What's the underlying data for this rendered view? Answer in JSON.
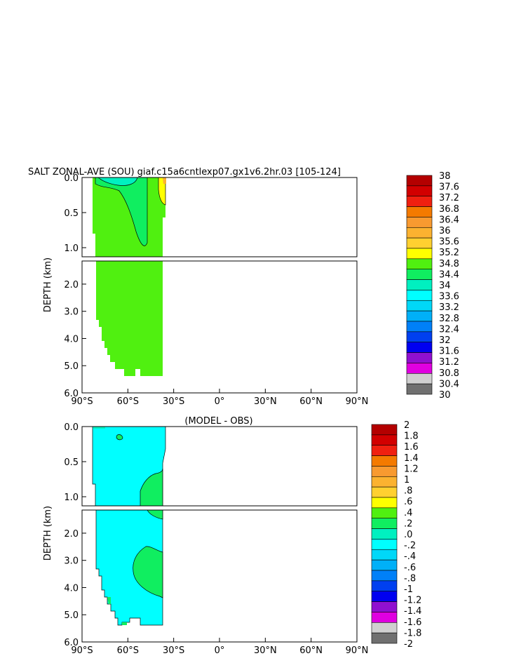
{
  "chart_data": [
    {
      "type": "heatmap",
      "title": "SALT ZONAL-AVE (SOU) giaf.c15a6cntlexp07.gx1v6.2hr.03 [105-124]",
      "ylabel": "DEPTH (km)",
      "xlim": [
        -90,
        90
      ],
      "ylim": [
        6.0,
        0.0
      ],
      "x_ticks": [
        -90,
        -60,
        -30,
        0,
        30,
        60,
        90
      ],
      "x_tick_labels": [
        "90°S",
        "60°S",
        "30°S",
        "0°",
        "30°N",
        "60°N",
        "90°N"
      ],
      "upper_y_ticks": [
        0.0,
        0.5,
        1.0
      ],
      "upper_y_tick_labels": [
        "0.0",
        "0.5",
        "1.0"
      ],
      "lower_y_ticks": [
        2.0,
        3.0,
        4.0,
        5.0,
        6.0
      ],
      "lower_y_tick_labels": [
        "2.0",
        "3.0",
        "4.0",
        "5.0",
        "6.0"
      ],
      "colorbar_labels": [
        "38",
        "37.6",
        "37.2",
        "36.8",
        "36.4",
        "36",
        "35.6",
        "35.2",
        "34.8",
        "34.4",
        "34",
        "33.6",
        "33.2",
        "32.8",
        "32.4",
        "32",
        "31.6",
        "31.2",
        "30.8",
        "30.4",
        "30"
      ],
      "colorbar_colors": [
        "#b40000",
        "#d20000",
        "#f02010",
        "#f47a00",
        "#f89a30",
        "#fbb230",
        "#ffd030",
        "#ffff00",
        "#50f010",
        "#10ee60",
        "#00f0c0",
        "#00ffff",
        "#00d8f8",
        "#00b0f8",
        "#0080f8",
        "#0040f0",
        "#0000f0",
        "#9010d0",
        "#e000e0",
        "#d0d0d0",
        "#707070"
      ]
    },
    {
      "type": "heatmap",
      "title": "(MODEL - OBS)",
      "ylabel": "DEPTH (km)",
      "xlim": [
        -90,
        90
      ],
      "ylim": [
        6.0,
        0.0
      ],
      "x_ticks": [
        -90,
        -60,
        -30,
        0,
        30,
        60,
        90
      ],
      "x_tick_labels": [
        "90°S",
        "60°S",
        "30°S",
        "0°",
        "30°N",
        "60°N",
        "90°N"
      ],
      "upper_y_ticks": [
        0.0,
        0.5,
        1.0
      ],
      "upper_y_tick_labels": [
        "0.0",
        "0.5",
        "1.0"
      ],
      "lower_y_ticks": [
        2.0,
        3.0,
        4.0,
        5.0,
        6.0
      ],
      "lower_y_tick_labels": [
        "2.0",
        "3.0",
        "4.0",
        "5.0",
        "6.0"
      ],
      "colorbar_labels": [
        "2",
        "1.8",
        "1.6",
        "1.4",
        "1.2",
        "1",
        ".8",
        ".6",
        ".4",
        ".2",
        ".0",
        "-.2",
        "-.4",
        "-.6",
        "-.8",
        "-1",
        "-1.2",
        "-1.4",
        "-1.6",
        "-1.8",
        "-2"
      ],
      "colorbar_colors": [
        "#b40000",
        "#d20000",
        "#f02010",
        "#f47a00",
        "#f89a30",
        "#fbb230",
        "#ffd030",
        "#ffff00",
        "#50f010",
        "#10ee60",
        "#00f0c0",
        "#00ffff",
        "#00d8f8",
        "#00b0f8",
        "#0080f8",
        "#0040f0",
        "#0000f0",
        "#9010d0",
        "#e000e0",
        "#d0d0d0",
        "#707070"
      ]
    }
  ],
  "colors": {
    "salinity_main": "#50f010",
    "salinity_fresh_surface": "#10ee60",
    "salinity_deep_fresh": "#00f0c0",
    "salinity_high": "#ffff00",
    "diff_main": "#00ffff",
    "diff_positive": "#10ee60",
    "diff_small": "#00f0c0",
    "diff_negative": "#00d8f8"
  }
}
